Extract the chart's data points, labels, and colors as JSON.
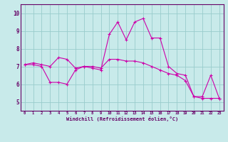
{
  "xlabel": "Windchill (Refroidissement éolien,°C)",
  "background_color": "#c8eaea",
  "line_color": "#cc00aa",
  "grid_color": "#99cccc",
  "spine_color": "#660066",
  "tick_color": "#660066",
  "label_color": "#660066",
  "xlim": [
    -0.5,
    23.5
  ],
  "ylim": [
    4.5,
    10.5
  ],
  "yticks": [
    5,
    6,
    7,
    8,
    9,
    10
  ],
  "xticks": [
    0,
    1,
    2,
    3,
    4,
    5,
    6,
    7,
    8,
    9,
    10,
    11,
    12,
    13,
    14,
    15,
    16,
    17,
    18,
    19,
    20,
    21,
    22,
    23
  ],
  "line1_x": [
    0,
    1,
    2,
    3,
    4,
    5,
    6,
    7,
    8,
    9,
    10,
    11,
    12,
    13,
    14,
    15,
    16,
    17,
    18,
    19,
    20,
    21,
    22,
    23
  ],
  "line1_y": [
    7.1,
    7.2,
    7.1,
    7.0,
    7.5,
    7.4,
    6.9,
    7.0,
    6.9,
    6.8,
    8.8,
    9.5,
    8.5,
    9.5,
    9.7,
    8.6,
    8.6,
    7.0,
    6.6,
    6.5,
    5.3,
    5.3,
    6.5,
    5.2
  ],
  "line2_x": [
    0,
    1,
    2,
    3,
    4,
    5,
    6,
    7,
    8,
    9,
    10,
    11,
    12,
    13,
    14,
    15,
    16,
    17,
    18,
    19,
    20,
    21,
    22,
    23
  ],
  "line2_y": [
    7.1,
    7.1,
    7.0,
    6.1,
    6.1,
    6.0,
    6.8,
    7.0,
    7.0,
    6.9,
    7.4,
    7.4,
    7.3,
    7.3,
    7.2,
    7.0,
    6.8,
    6.6,
    6.5,
    6.2,
    5.3,
    5.2,
    5.2,
    5.2
  ]
}
